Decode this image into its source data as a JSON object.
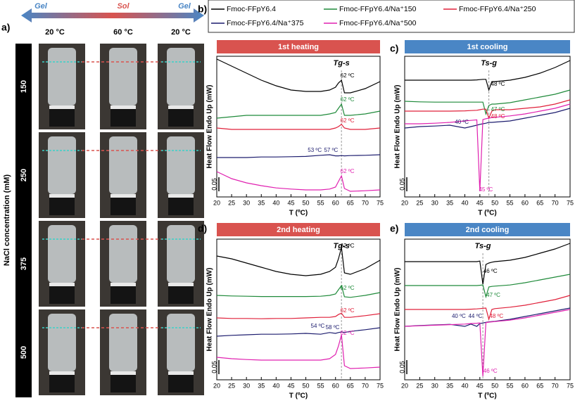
{
  "photo_panel": {
    "panel_label": "a)",
    "phases": [
      "Gel",
      "Sol",
      "Gel"
    ],
    "temperatures": [
      "20 °C",
      "60 °C",
      "20 °C"
    ],
    "ylabel": "NaCl concentration (mM)",
    "concentrations": [
      "150",
      "250",
      "375",
      "500"
    ]
  },
  "chart_data": [
    {
      "type": "line",
      "panel_label": "b)",
      "title": "1st heating",
      "title_color": "#d9534f",
      "transition_label": "Tg-s",
      "xlabel": "T (ºC)",
      "ylabel": "Heat Flow Endo Up (mW)",
      "xlim": [
        20,
        75
      ],
      "xticks": [
        20,
        25,
        30,
        35,
        40,
        45,
        50,
        55,
        60,
        65,
        70,
        75
      ],
      "ylim": [
        0,
        0.5
      ],
      "scale_bar": 0.05,
      "vline": 62,
      "x": [
        20,
        25,
        30,
        35,
        40,
        45,
        50,
        55,
        58,
        60,
        61,
        62,
        63,
        65,
        70,
        75
      ],
      "series": [
        {
          "name": "Fmoc-FFpY6.4",
          "color": "#000000",
          "values": [
            0.49,
            0.465,
            0.44,
            0.415,
            0.395,
            0.38,
            0.375,
            0.375,
            0.38,
            0.39,
            0.405,
            0.415,
            0.37,
            0.37,
            0.385,
            0.41
          ]
        },
        {
          "name": "Fmoc-FFpY6.4/Na⁺150",
          "color": "#1f8a3a",
          "values": [
            0.28,
            0.285,
            0.29,
            0.29,
            0.29,
            0.29,
            0.29,
            0.29,
            0.295,
            0.3,
            0.315,
            0.33,
            0.29,
            0.29,
            0.295,
            0.305
          ]
        },
        {
          "name": "Fmoc-FFpY6.4/Na⁺250",
          "color": "#e0203a",
          "values": [
            0.245,
            0.24,
            0.24,
            0.24,
            0.24,
            0.24,
            0.24,
            0.24,
            0.24,
            0.245,
            0.25,
            0.258,
            0.245,
            0.24,
            0.24,
            0.245
          ]
        },
        {
          "name": "Fmoc-FFpY6.4/Na⁺375",
          "color": "#1c1c6e",
          "values": [
            0.14,
            0.14,
            0.14,
            0.142,
            0.142,
            0.143,
            0.144,
            0.148,
            0.15,
            0.146,
            0.146,
            0.147,
            0.146,
            0.147,
            0.148,
            0.15
          ]
        },
        {
          "name": "Fmoc-FFpY6.4/Na⁺500",
          "color": "#e020b0",
          "values": [
            0.09,
            0.065,
            0.05,
            0.04,
            0.032,
            0.028,
            0.025,
            0.025,
            0.028,
            0.035,
            0.055,
            0.075,
            0.03,
            0.02,
            0.022,
            0.025
          ]
        }
      ],
      "annotations": [
        {
          "text": "62 ºC",
          "x": 64,
          "y": 0.43,
          "color": "#000000"
        },
        {
          "text": "62 ºC",
          "x": 64,
          "y": 0.345,
          "color": "#1f8a3a"
        },
        {
          "text": "62 ºC",
          "x": 64,
          "y": 0.27,
          "color": "#e0203a"
        },
        {
          "text": "53 ºC",
          "x": 53,
          "y": 0.165,
          "color": "#1c1c6e"
        },
        {
          "text": "57 ºC",
          "x": 58.5,
          "y": 0.165,
          "color": "#1c1c6e"
        },
        {
          "text": "62 ºC",
          "x": 64,
          "y": 0.09,
          "color": "#e020b0"
        }
      ]
    },
    {
      "type": "line",
      "panel_label": "c)",
      "title": "1st cooling",
      "title_color": "#4a86c5",
      "transition_label": "Ts-g",
      "xlabel": "T (ºC)",
      "ylabel": "Heat Flow Endo Up (mW)",
      "xlim": [
        20,
        75
      ],
      "xticks": [
        20,
        25,
        30,
        35,
        40,
        45,
        50,
        55,
        60,
        65,
        70,
        75
      ],
      "ylim": [
        0,
        0.5
      ],
      "scale_bar": 0.05,
      "vline": 48,
      "x": [
        20,
        25,
        30,
        35,
        40,
        42,
        44,
        45,
        46,
        47,
        48,
        49,
        50,
        55,
        60,
        65,
        70,
        75
      ],
      "series": [
        {
          "values": [
            0.415,
            0.415,
            0.415,
            0.415,
            0.415,
            0.415,
            0.416,
            0.417,
            0.418,
            0.418,
            0.38,
            0.41,
            0.41,
            0.415,
            0.425,
            0.44,
            0.46,
            0.485
          ]
        },
        {
          "values": [
            0.34,
            0.338,
            0.337,
            0.337,
            0.337,
            0.337,
            0.337,
            0.337,
            0.337,
            0.295,
            0.325,
            0.33,
            0.33,
            0.335,
            0.345,
            0.355,
            0.365,
            0.38
          ]
        },
        {
          "values": [
            0.305,
            0.305,
            0.305,
            0.305,
            0.306,
            0.307,
            0.308,
            0.31,
            0.312,
            0.312,
            0.28,
            0.305,
            0.31,
            0.31,
            0.315,
            0.32,
            0.33,
            0.345
          ]
        },
        {
          "values": [
            0.245,
            0.25,
            0.252,
            0.255,
            0.245,
            0.25,
            0.255,
            0.258,
            0.26,
            0.262,
            0.265,
            0.265,
            0.266,
            0.27,
            0.28,
            0.29,
            0.3,
            0.315
          ]
        },
        {
          "values": [
            0.26,
            0.26,
            0.262,
            0.265,
            0.27,
            0.272,
            0.274,
            0.02,
            0.275,
            0.278,
            0.28,
            0.282,
            0.283,
            0.288,
            0.295,
            0.305,
            0.315,
            0.33
          ]
        }
      ],
      "annotations": [
        {
          "text": "48 ºC",
          "x": 51,
          "y": 0.4,
          "color": "#000000"
        },
        {
          "text": "47 ºC",
          "x": 51,
          "y": 0.31,
          "color": "#1f8a3a"
        },
        {
          "text": "48 ºC",
          "x": 51,
          "y": 0.285,
          "color": "#e0203a"
        },
        {
          "text": "40 ºC",
          "x": 39,
          "y": 0.265,
          "color": "#1c1c6e"
        },
        {
          "text": "45 ºC",
          "x": 47,
          "y": 0.025,
          "color": "#e020b0"
        }
      ]
    },
    {
      "type": "line",
      "panel_label": "d)",
      "title": "2nd heating",
      "title_color": "#d9534f",
      "transition_label": "Tg-s",
      "xlabel": "T (ºC)",
      "ylabel": "Heat Flow Endo Up (mW)",
      "xlim": [
        20,
        75
      ],
      "xticks": [
        20,
        25,
        30,
        35,
        40,
        45,
        50,
        55,
        60,
        65,
        70,
        75
      ],
      "ylim": [
        0,
        0.5
      ],
      "scale_bar": 0.05,
      "vline": 62,
      "x": [
        20,
        25,
        30,
        35,
        40,
        45,
        50,
        55,
        58,
        60,
        61,
        62,
        63,
        65,
        70,
        75
      ],
      "series": [
        {
          "values": [
            0.44,
            0.43,
            0.415,
            0.4,
            0.385,
            0.375,
            0.37,
            0.375,
            0.385,
            0.4,
            0.43,
            0.47,
            0.38,
            0.375,
            0.395,
            0.425
          ]
        },
        {
          "values": [
            0.3,
            0.298,
            0.297,
            0.296,
            0.296,
            0.296,
            0.296,
            0.297,
            0.3,
            0.305,
            0.32,
            0.335,
            0.295,
            0.293,
            0.3,
            0.31
          ]
        },
        {
          "values": [
            0.22,
            0.218,
            0.218,
            0.217,
            0.218,
            0.218,
            0.22,
            0.222,
            0.222,
            0.225,
            0.232,
            0.237,
            0.222,
            0.222,
            0.228,
            0.235
          ]
        },
        {
          "values": [
            0.155,
            0.158,
            0.16,
            0.162,
            0.162,
            0.163,
            0.165,
            0.162,
            0.168,
            0.165,
            0.168,
            0.17,
            0.168,
            0.172,
            0.178,
            0.185
          ]
        },
        {
          "values": [
            0.08,
            0.075,
            0.072,
            0.07,
            0.07,
            0.07,
            0.07,
            0.07,
            0.075,
            0.09,
            0.12,
            0.16,
            0.05,
            0.04,
            0.042,
            0.045
          ]
        }
      ],
      "annotations": [
        {
          "text": "62 ºC",
          "x": 64,
          "y": 0.475,
          "color": "#000000"
        },
        {
          "text": "62 ºC",
          "x": 64,
          "y": 0.325,
          "color": "#1f8a3a"
        },
        {
          "text": "62 ºC",
          "x": 64,
          "y": 0.245,
          "color": "#e0203a"
        },
        {
          "text": "54 ºC",
          "x": 54,
          "y": 0.19,
          "color": "#1c1c6e"
        },
        {
          "text": "58 ºC",
          "x": 59,
          "y": 0.185,
          "color": "#1c1c6e"
        },
        {
          "text": "62 ºC",
          "x": 64,
          "y": 0.165,
          "color": "#e020b0"
        }
      ]
    },
    {
      "type": "line",
      "panel_label": "e)",
      "title": "2nd cooling",
      "title_color": "#4a86c5",
      "transition_label": "Ts-g",
      "xlabel": "T (ºC)",
      "ylabel": "Heat Flow Endo Up (mW)",
      "xlim": [
        20,
        75
      ],
      "xticks": [
        20,
        25,
        30,
        35,
        40,
        45,
        50,
        55,
        60,
        65,
        70,
        75
      ],
      "ylim": [
        0,
        0.5
      ],
      "scale_bar": 0.05,
      "vline": 46,
      "x": [
        20,
        25,
        30,
        35,
        40,
        42,
        44,
        45,
        46,
        47,
        48,
        49,
        50,
        55,
        60,
        65,
        70,
        75
      ],
      "series": [
        {
          "values": [
            0.42,
            0.42,
            0.42,
            0.42,
            0.42,
            0.42,
            0.42,
            0.422,
            0.34,
            0.41,
            0.415,
            0.418,
            0.42,
            0.425,
            0.435,
            0.45,
            0.465,
            0.485
          ]
        },
        {
          "values": [
            0.335,
            0.335,
            0.335,
            0.335,
            0.335,
            0.335,
            0.335,
            0.336,
            0.337,
            0.295,
            0.33,
            0.332,
            0.333,
            0.337,
            0.345,
            0.355,
            0.365,
            0.375
          ]
        },
        {
          "values": [
            0.25,
            0.25,
            0.25,
            0.25,
            0.25,
            0.251,
            0.252,
            0.253,
            0.254,
            0.255,
            0.215,
            0.25,
            0.253,
            0.258,
            0.265,
            0.275,
            0.285,
            0.3
          ]
        },
        {
          "values": [
            0.19,
            0.193,
            0.195,
            0.197,
            0.19,
            0.198,
            0.19,
            0.2,
            0.202,
            0.204,
            0.206,
            0.207,
            0.208,
            0.215,
            0.225,
            0.235,
            0.245,
            0.255
          ]
        },
        {
          "values": [
            0.19,
            0.192,
            0.194,
            0.196,
            0.198,
            0.2,
            0.201,
            0.202,
            0.0125,
            0.203,
            0.205,
            0.206,
            0.207,
            0.212,
            0.22,
            0.23,
            0.24,
            0.25
          ]
        }
      ],
      "annotations": [
        {
          "text": "46 ºC",
          "x": 48.5,
          "y": 0.385,
          "color": "#000000"
        },
        {
          "text": "47 ºC",
          "x": 49.5,
          "y": 0.3,
          "color": "#1f8a3a"
        },
        {
          "text": "48 ºC",
          "x": 50.5,
          "y": 0.225,
          "color": "#e0203a"
        },
        {
          "text": "40 ºC",
          "x": 38,
          "y": 0.225,
          "color": "#1c1c6e"
        },
        {
          "text": "44 ºC",
          "x": 43.5,
          "y": 0.225,
          "color": "#1c1c6e"
        },
        {
          "text": "46 ºC",
          "x": 48.5,
          "y": 0.03,
          "color": "#e020b0"
        }
      ]
    }
  ]
}
